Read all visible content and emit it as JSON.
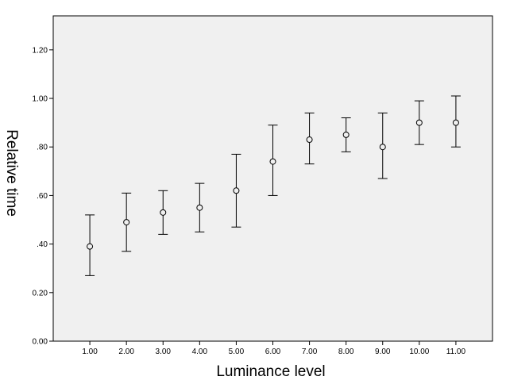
{
  "chart_data": {
    "type": "scatter",
    "xlabel": "Luminance level",
    "ylabel": "Relative time",
    "x": [
      1,
      2,
      3,
      4,
      5,
      6,
      7,
      8,
      9,
      10,
      11
    ],
    "x_tick_labels": [
      "1.00",
      "2.00",
      "3.00",
      "4.00",
      "5.00",
      "6.00",
      "7.00",
      "8.00",
      "9.00",
      "10.00",
      "11.00"
    ],
    "xlim": [
      0,
      12
    ],
    "ylim": [
      0,
      1.34
    ],
    "y_ticks": [
      0,
      0.2,
      0.4,
      0.6,
      0.8,
      1.0,
      1.2
    ],
    "y_tick_labels": [
      "0.00",
      "0.20",
      ".40",
      ".60",
      ".80",
      "1.00",
      "1.20"
    ],
    "series": [
      {
        "values": [
          0.39,
          0.49,
          0.53,
          0.55,
          0.62,
          0.74,
          0.83,
          0.85,
          0.8,
          0.9,
          0.9
        ],
        "error_lower": [
          0.27,
          0.37,
          0.44,
          0.45,
          0.47,
          0.6,
          0.73,
          0.78,
          0.67,
          0.81,
          0.8
        ],
        "error_upper": [
          0.52,
          0.61,
          0.62,
          0.65,
          0.77,
          0.89,
          0.94,
          0.92,
          0.94,
          0.99,
          1.01
        ]
      }
    ],
    "grid": false,
    "legend": "none",
    "colors": {
      "plot_background": "#f0f0f0",
      "marker": "#000000",
      "error_bar": "#000000"
    }
  }
}
